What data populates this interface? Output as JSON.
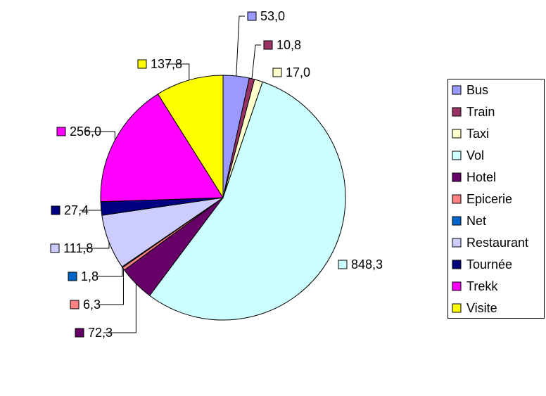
{
  "chart_data": {
    "type": "pie",
    "categories": [
      "Bus",
      "Train",
      "Taxi",
      "Vol",
      "Hotel",
      "Epicerie",
      "Net",
      "Restaurant",
      "Tournée",
      "Trekk",
      "Visite"
    ],
    "values": [
      53.0,
      10.8,
      17.0,
      848.3,
      72.3,
      6.3,
      1.8,
      111.8,
      27.4,
      256.0,
      137.8
    ],
    "value_labels": [
      "53,0",
      "10,8",
      "17,0",
      "848,3",
      "72,3",
      "6,3",
      "1,8",
      "111,8",
      "27,4",
      "256,0",
      "137,8"
    ],
    "colors": [
      "#9999ff",
      "#993366",
      "#ffffcc",
      "#ccffff",
      "#660066",
      "#ff8080",
      "#0066cc",
      "#ccccff",
      "#000080",
      "#ff00ff",
      "#ffff00"
    ],
    "legend": "right"
  }
}
